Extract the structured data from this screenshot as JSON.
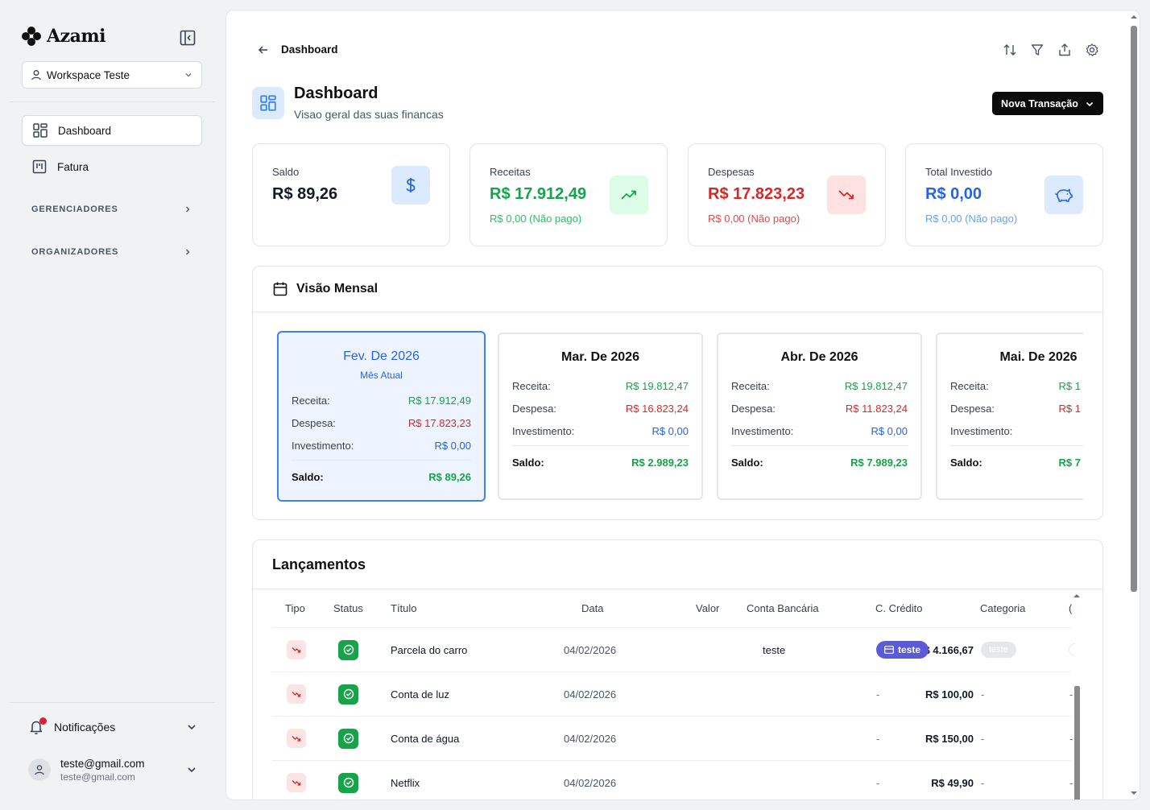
{
  "app": {
    "name": "Azami"
  },
  "workspace": {
    "label": "Workspace Teste"
  },
  "sidebar": {
    "items": [
      {
        "label": "Dashboard",
        "icon": "layout-grid-icon",
        "active": true
      },
      {
        "label": "Fatura",
        "icon": "kanban-icon",
        "active": false
      }
    ],
    "groups": [
      {
        "label": "GERENCIADORES"
      },
      {
        "label": "ORGANIZADORES"
      }
    ],
    "notifications_label": "Notificações",
    "user": {
      "name": "teste@gmail.com",
      "email": "teste@gmail.com"
    }
  },
  "header": {
    "breadcrumb": "Dashboard",
    "title": "Dashboard",
    "subtitle": "Visao geral das suas financas",
    "new_button": "Nova Transação"
  },
  "stats": [
    {
      "label": "Saldo",
      "value": "R$ 89,26",
      "sub": "",
      "color": "#111827",
      "icon": "dollar-icon"
    },
    {
      "label": "Receitas",
      "value": "R$ 17.912,49",
      "sub": "R$ 0,00 (Não pago)",
      "color": "#16a34a",
      "icon": "trending-up-icon"
    },
    {
      "label": "Despesas",
      "value": "R$ 17.823,23",
      "sub": "R$ 0,00 (Não pago)",
      "color": "#dc2626",
      "icon": "trending-down-icon"
    },
    {
      "label": "Total Investido",
      "value": "R$ 0,00",
      "sub": "R$ 0,00 (Não pago)",
      "color": "#2563eb",
      "icon": "piggy-bank-icon"
    }
  ],
  "monthly": {
    "title": "Visão Mensal",
    "row_labels": {
      "income": "Receita:",
      "expense": "Despesa:",
      "investment": "Investimento:",
      "balance": "Saldo:"
    },
    "months": [
      {
        "title": "Fev. De 2026",
        "subtitle": "Mês Atual",
        "income": "R$ 17.912,49",
        "expense": "R$ 17.823,23",
        "investment": "R$ 0,00",
        "balance": "R$ 89,26"
      },
      {
        "title": "Mar. De 2026",
        "subtitle": "",
        "income": "R$ 19.812,47",
        "expense": "R$ 16.823,24",
        "investment": "R$ 0,00",
        "balance": "R$ 2.989,23"
      },
      {
        "title": "Abr. De 2026",
        "subtitle": "",
        "income": "R$ 19.812,47",
        "expense": "R$ 11.823,24",
        "investment": "R$ 0,00",
        "balance": "R$ 7.989,23"
      },
      {
        "title": "Mai. De 2026",
        "subtitle": "",
        "income": "R$ 1",
        "expense": "R$ 1",
        "investment": "",
        "balance": "R$ 7"
      }
    ]
  },
  "entries": {
    "title": "Lançamentos",
    "columns": [
      "Tipo",
      "Status",
      "Título",
      "Data",
      "Valor",
      "Conta Bancária",
      "C. Crédito",
      "Categoria",
      "("
    ],
    "rows": [
      {
        "title": "Parcela do carro",
        "date": "04/02/2026",
        "value": "R$ 4.166,67",
        "bank": "teste",
        "card": "teste",
        "category": "teste"
      },
      {
        "title": "Conta de luz",
        "date": "04/02/2026",
        "value": "R$ 100,00",
        "bank": "",
        "card": "-",
        "category": "-"
      },
      {
        "title": "Conta de água",
        "date": "04/02/2026",
        "value": "R$ 150,00",
        "bank": "",
        "card": "-",
        "category": "-"
      },
      {
        "title": "Netflix",
        "date": "04/02/2026",
        "value": "R$ 49,90",
        "bank": "",
        "card": "-",
        "category": "-"
      }
    ]
  },
  "colors": {
    "income": "#16a34a",
    "expense": "#dc2626",
    "investment": "#2563eb",
    "accent": "#3b82f6"
  }
}
